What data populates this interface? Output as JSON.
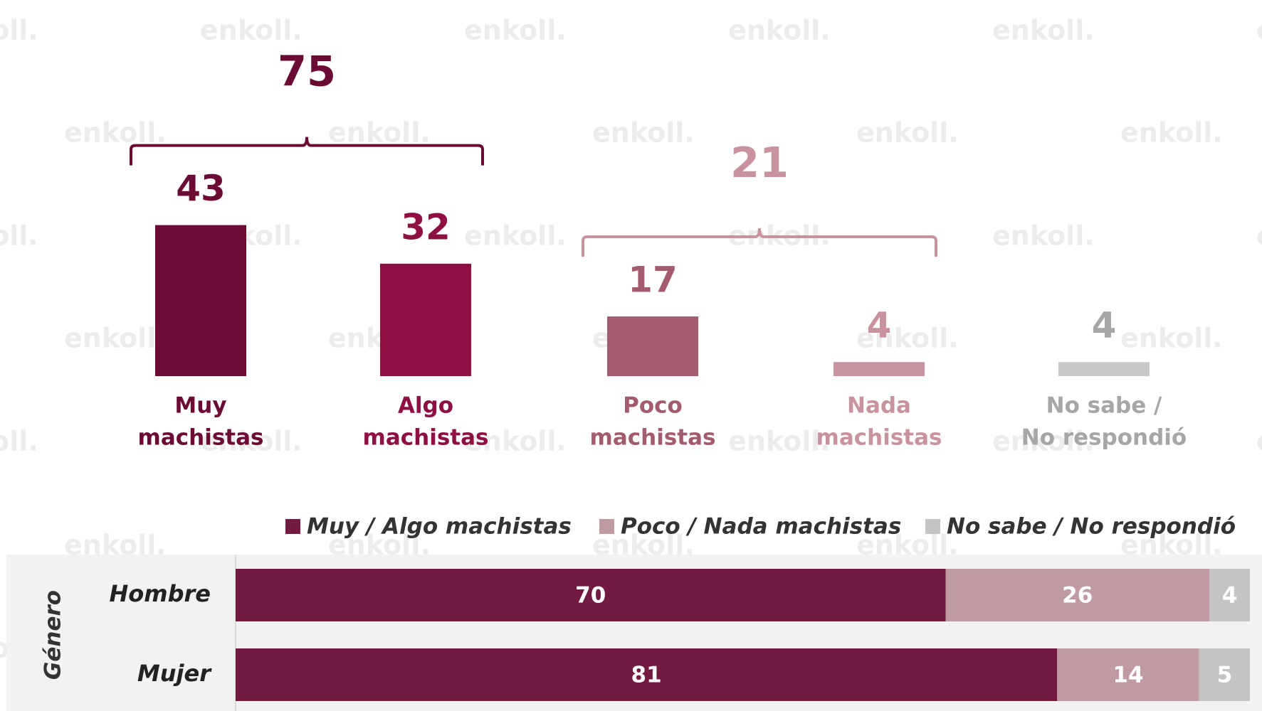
{
  "watermark": "enkoll.",
  "chart_data": [
    {
      "type": "bar",
      "categories": [
        [
          "Muy",
          "machistas"
        ],
        [
          "Algo",
          "machistas"
        ],
        [
          "Poco",
          "machistas"
        ],
        [
          "Nada",
          "machistas"
        ],
        [
          "No sabe /",
          "No respondió"
        ]
      ],
      "values": [
        43,
        32,
        17,
        4,
        4
      ],
      "colors": [
        "#6b0a33",
        "#8e1042",
        "#a35c6d",
        "#c8939e",
        "#c8c8c8"
      ],
      "label_colors": [
        "#6b0a33",
        "#8e1042",
        "#a35c6d",
        "#c8939e",
        "#a6a6a6"
      ],
      "annotations": [
        {
          "value": 75,
          "color": "#6b0a33"
        },
        {
          "value": 21,
          "color": "#c8939e"
        }
      ]
    },
    {
      "type": "stacked-hbar",
      "y_label": "Género",
      "categories": [
        "Hombre",
        "Mujer"
      ],
      "xlim": [
        0,
        100
      ],
      "legend": "top",
      "series": [
        {
          "name": "Muy / Algo machistas",
          "color": "#721a40",
          "values": [
            70,
            81
          ]
        },
        {
          "name": "Poco / Nada machistas",
          "color": "#bf9aa2",
          "values": [
            26,
            14
          ]
        },
        {
          "name": "No sabe / No respondió",
          "color": "#c4c4c4",
          "values": [
            4,
            5
          ]
        }
      ]
    }
  ]
}
